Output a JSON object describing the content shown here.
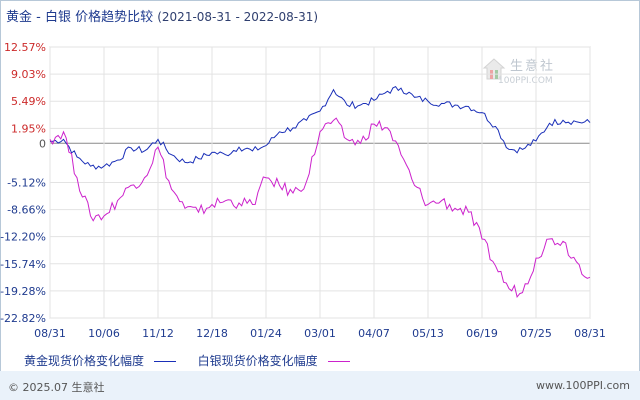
{
  "title": {
    "main": "黄金 - 白银 价格趋势比较",
    "range": "(2021-08-31 - 2022-08-31)"
  },
  "watermark": {
    "name": "生意社",
    "url": "100PPI.COM"
  },
  "legend": {
    "gold": "黄金现货价格变化幅度",
    "silver": "白银现货价格变化幅度"
  },
  "footer": {
    "copyright": "© 2025.07 生意社",
    "site": "www.100PPI.com"
  },
  "colors": {
    "gold": "#1a2fb8",
    "silver": "#cc22cc",
    "axis_pos": "#cc2a2a",
    "axis_neg": "#1f3b8f",
    "grid": "#e3e3e3"
  },
  "chart_data": {
    "type": "line",
    "title": "黄金 - 白银 价格趋势比较",
    "subtitle": "(2021-08-31 - 2022-08-31)",
    "xlabel": "",
    "ylabel": "",
    "ylim": [
      -22.82,
      12.57
    ],
    "grid": true,
    "legend_position": "bottom",
    "y_ticks": [
      "12.57%",
      "9.03%",
      "5.49%",
      "1.95%",
      "0",
      "-5.12%",
      "-8.66%",
      "-12.20%",
      "-15.74%",
      "-19.28%",
      "-22.82%"
    ],
    "y_tick_values": [
      12.57,
      9.03,
      5.49,
      1.95,
      0,
      -5.12,
      -8.66,
      -12.2,
      -15.74,
      -19.28,
      -22.82
    ],
    "x_ticks": [
      "08/31",
      "10/06",
      "11/12",
      "12/18",
      "01/24",
      "03/01",
      "04/07",
      "05/13",
      "06/19",
      "07/25",
      "08/31"
    ],
    "x": [
      "08/31",
      "09/09",
      "09/18",
      "09/27",
      "10/06",
      "10/15",
      "10/24",
      "11/03",
      "11/12",
      "11/21",
      "11/30",
      "12/09",
      "12/18",
      "12/27",
      "01/06",
      "01/15",
      "01/24",
      "02/02",
      "02/11",
      "02/20",
      "03/01",
      "03/08",
      "03/17",
      "03/28",
      "04/07",
      "04/16",
      "04/25",
      "05/04",
      "05/13",
      "05/22",
      "05/31",
      "06/09",
      "06/19",
      "06/28",
      "07/07",
      "07/16",
      "07/25",
      "08/03",
      "08/12",
      "08/22",
      "08/31"
    ],
    "series": [
      {
        "name": "黄金现货价格变化幅度",
        "values": [
          0.2,
          0.5,
          -1.8,
          -3.0,
          -3.0,
          -2.2,
          -0.6,
          -1.0,
          0.5,
          -1.5,
          -2.5,
          -2.0,
          -1.2,
          -1.5,
          -0.5,
          -1.0,
          -0.3,
          1.5,
          2.0,
          3.0,
          4.2,
          7.0,
          5.0,
          5.0,
          5.6,
          6.8,
          7.2,
          6.0,
          5.5,
          5.2,
          5.0,
          4.8,
          4.0,
          2.2,
          -0.8,
          -0.8,
          0.3,
          2.6,
          3.0,
          2.8,
          2.7
        ]
      },
      {
        "name": "白银现货价格变化幅度",
        "values": [
          0.5,
          1.5,
          -4.5,
          -9.5,
          -9.5,
          -7.5,
          -5.5,
          -4.5,
          -0.5,
          -6.0,
          -8.5,
          -9.0,
          -8.0,
          -7.5,
          -7.8,
          -8.0,
          -4.5,
          -5.5,
          -6.5,
          -5.0,
          1.5,
          3.0,
          0.5,
          0.0,
          2.5,
          2.0,
          -1.5,
          -5.5,
          -8.0,
          -7.5,
          -8.5,
          -9.0,
          -12.5,
          -16.0,
          -19.0,
          -19.5,
          -15.0,
          -12.5,
          -12.8,
          -15.5,
          -17.5
        ]
      }
    ]
  }
}
